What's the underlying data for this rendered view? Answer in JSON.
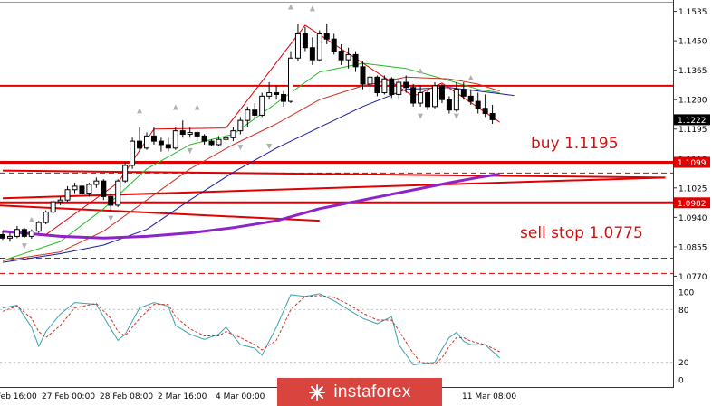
{
  "colors": {
    "bull_candle": "#ffffff",
    "bear_candle": "#000000",
    "level_line": "#e00000",
    "ma_fast": "#22bb22",
    "ma_mid": "#d03020",
    "ma_slow": "#1a1aa0",
    "ma_long": "#8e24c8",
    "stoch_main": "#3aa0b0",
    "stoch_signal": "#d03020",
    "annotation_text": "#cc1111",
    "watermark_bg": "#d9453e"
  },
  "annotations": {
    "buy": "buy 1.1195",
    "sell": "sell stop 1.0775"
  },
  "watermark": {
    "text": "instaforex",
    "icon": "instaforex-logo-icon"
  },
  "chart_data": [
    {
      "type": "candlestick",
      "symbol_timeframe_hidden": true,
      "price_axis": {
        "ylim": [
          1.0745,
          1.156
        ],
        "ticks": [
          "1.1535",
          "1.1450",
          "1.1365",
          "1.1280",
          "1.1195",
          "1.1110",
          "1.1025",
          "1.0940",
          "1.0855",
          "1.0770"
        ],
        "tick_values": [
          1.1535,
          1.145,
          1.1365,
          1.128,
          1.1195,
          1.111,
          1.1025,
          1.094,
          1.0855,
          1.077
        ]
      },
      "price_labels": [
        {
          "text": "1.1222",
          "value": 1.1222,
          "style": "current"
        },
        {
          "text": "1.1099",
          "value": 1.1099,
          "style": "level"
        },
        {
          "text": "1.0982",
          "value": 1.0982,
          "style": "level"
        }
      ],
      "x_labels": [
        "Feb 16:00",
        "27 Feb 00:00",
        "28 Feb 08:00",
        "2 Mar 16:00",
        "4 Mar 00:00",
        "11 Mar 08:00"
      ],
      "horizontal_levels": [
        1.132,
        1.1099,
        1.0982
      ],
      "dashed_levels": [
        1.1068,
        1.0822,
        1.0778
      ],
      "sloped_lines": [
        {
          "from": [
            0,
            1.0995
          ],
          "to": [
            92,
            1.1055
          ]
        },
        {
          "from": [
            0,
            1.1075
          ],
          "to": [
            92,
            1.1055
          ]
        },
        {
          "from": [
            -1,
            1.0975
          ],
          "to": [
            44,
            1.093
          ]
        }
      ],
      "zigzag": [
        [
          6,
          1.089
        ],
        [
          16,
          1.104
        ],
        [
          21,
          1.1195
        ],
        [
          31,
          1.1198
        ],
        [
          42,
          1.1495
        ],
        [
          57,
          1.129
        ],
        [
          61,
          1.1328
        ],
        [
          69,
          1.1215
        ]
      ],
      "fractals_up": [
        [
          4,
          1.0915
        ],
        [
          19,
          1.123
        ],
        [
          24,
          1.124
        ],
        [
          27,
          1.124
        ],
        [
          40,
          1.153
        ],
        [
          43,
          1.1525
        ],
        [
          58,
          1.1345
        ],
        [
          65,
          1.1325
        ],
        [
          69,
          1.1575
        ]
      ],
      "fractals_down": [
        [
          3,
          1.0875
        ],
        [
          15,
          1.0955
        ],
        [
          26,
          1.115
        ],
        [
          33,
          1.116
        ],
        [
          37,
          1.1163
        ],
        [
          58,
          1.125
        ],
        [
          63,
          1.125
        ]
      ],
      "candles": [
        [
          1.089,
          1.09,
          1.0875,
          1.088
        ],
        [
          1.088,
          1.0895,
          1.087,
          1.0885
        ],
        [
          1.0885,
          1.0915,
          1.088,
          1.0905
        ],
        [
          1.0905,
          1.091,
          1.088,
          1.0885
        ],
        [
          1.0885,
          1.0905,
          1.0878,
          1.09
        ],
        [
          1.09,
          1.093,
          1.0895,
          1.0925
        ],
        [
          1.0925,
          1.096,
          1.092,
          1.0955
        ],
        [
          1.0955,
          1.099,
          1.095,
          1.0985
        ],
        [
          1.0985,
          1.1,
          1.0975,
          1.099
        ],
        [
          1.099,
          1.103,
          1.0985,
          1.102
        ],
        [
          1.102,
          1.104,
          1.101,
          1.103
        ],
        [
          1.103,
          1.1035,
          1.1005,
          1.101
        ],
        [
          1.101,
          1.104,
          1.1,
          1.1035
        ],
        [
          1.1035,
          1.1055,
          1.1025,
          1.1045
        ],
        [
          1.1045,
          1.105,
          1.099,
          1.1
        ],
        [
          1.1,
          1.101,
          1.096,
          1.0975
        ],
        [
          1.0975,
          1.105,
          1.097,
          1.1045
        ],
        [
          1.1045,
          1.11,
          1.104,
          1.109
        ],
        [
          1.109,
          1.117,
          1.108,
          1.116
        ],
        [
          1.116,
          1.12,
          1.113,
          1.114
        ],
        [
          1.114,
          1.1185,
          1.1135,
          1.1175
        ],
        [
          1.1175,
          1.12,
          1.115,
          1.116
        ],
        [
          1.116,
          1.117,
          1.113,
          1.115
        ],
        [
          1.115,
          1.117,
          1.113,
          1.114
        ],
        [
          1.114,
          1.12,
          1.1135,
          1.119
        ],
        [
          1.119,
          1.122,
          1.117,
          1.118
        ],
        [
          1.118,
          1.12,
          1.117,
          1.1185
        ],
        [
          1.1185,
          1.119,
          1.116,
          1.1175
        ],
        [
          1.1175,
          1.118,
          1.115,
          1.116
        ],
        [
          1.116,
          1.1165,
          1.1145,
          1.115
        ],
        [
          1.115,
          1.1175,
          1.1145,
          1.1165
        ],
        [
          1.1165,
          1.118,
          1.115,
          1.117
        ],
        [
          1.117,
          1.12,
          1.116,
          1.119
        ],
        [
          1.119,
          1.123,
          1.118,
          1.122
        ],
        [
          1.122,
          1.126,
          1.12,
          1.125
        ],
        [
          1.125,
          1.127,
          1.1225,
          1.1235
        ],
        [
          1.1235,
          1.13,
          1.123,
          1.129
        ],
        [
          1.129,
          1.133,
          1.128,
          1.13
        ],
        [
          1.13,
          1.132,
          1.128,
          1.1295
        ],
        [
          1.1295,
          1.1305,
          1.126,
          1.1275
        ],
        [
          1.1275,
          1.142,
          1.127,
          1.14
        ],
        [
          1.14,
          1.15,
          1.139,
          1.147
        ],
        [
          1.147,
          1.149,
          1.142,
          1.143
        ],
        [
          1.143,
          1.146,
          1.138,
          1.1395
        ],
        [
          1.1395,
          1.148,
          1.139,
          1.147
        ],
        [
          1.147,
          1.15,
          1.144,
          1.1455
        ],
        [
          1.1455,
          1.147,
          1.141,
          1.142
        ],
        [
          1.142,
          1.144,
          1.138,
          1.1395
        ],
        [
          1.1395,
          1.143,
          1.137,
          1.141
        ],
        [
          1.141,
          1.142,
          1.136,
          1.1375
        ],
        [
          1.1375,
          1.139,
          1.131,
          1.1325
        ],
        [
          1.1325,
          1.136,
          1.13,
          1.1345
        ],
        [
          1.1345,
          1.135,
          1.129,
          1.13
        ],
        [
          1.13,
          1.135,
          1.1295,
          1.134
        ],
        [
          1.134,
          1.1345,
          1.1285,
          1.1295
        ],
        [
          1.1295,
          1.134,
          1.128,
          1.133
        ],
        [
          1.133,
          1.135,
          1.13,
          1.1315
        ],
        [
          1.1315,
          1.1325,
          1.126,
          1.127
        ],
        [
          1.127,
          1.132,
          1.126,
          1.13
        ],
        [
          1.13,
          1.131,
          1.125,
          1.126
        ],
        [
          1.126,
          1.133,
          1.1255,
          1.132
        ],
        [
          1.132,
          1.1325,
          1.127,
          1.128
        ],
        [
          1.128,
          1.129,
          1.124,
          1.125
        ],
        [
          1.125,
          1.133,
          1.1245,
          1.131
        ],
        [
          1.131,
          1.133,
          1.128,
          1.129
        ],
        [
          1.129,
          1.131,
          1.1265,
          1.1275
        ],
        [
          1.1275,
          1.13,
          1.124,
          1.1255
        ],
        [
          1.1255,
          1.1295,
          1.123,
          1.124
        ],
        [
          1.124,
          1.1265,
          1.121,
          1.1222
        ]
      ],
      "moving_averages": [
        {
          "id": "ma_fast",
          "color_key": "ma_fast",
          "width": 1,
          "points": [
            [
              0,
              1.0815
            ],
            [
              8,
              1.087
            ],
            [
              14,
              1.0965
            ],
            [
              20,
              1.108
            ],
            [
              26,
              1.115
            ],
            [
              32,
              1.118
            ],
            [
              38,
              1.127
            ],
            [
              44,
              1.136
            ],
            [
              50,
              1.1385
            ],
            [
              56,
              1.137
            ],
            [
              62,
              1.1335
            ],
            [
              66,
              1.131
            ],
            [
              69,
              1.13
            ]
          ]
        },
        {
          "id": "ma_mid",
          "color_key": "ma_mid",
          "width": 1,
          "points": [
            [
              0,
              1.0815
            ],
            [
              8,
              1.084
            ],
            [
              14,
              1.09
            ],
            [
              20,
              1.099
            ],
            [
              26,
              1.108
            ],
            [
              32,
              1.115
            ],
            [
              38,
              1.121
            ],
            [
              44,
              1.128
            ],
            [
              50,
              1.132
            ],
            [
              56,
              1.1345
            ],
            [
              62,
              1.134
            ],
            [
              66,
              1.1325
            ],
            [
              69,
              1.1305
            ]
          ]
        },
        {
          "id": "ma_slow",
          "color_key": "ma_slow",
          "width": 1,
          "points": [
            [
              0,
              1.081
            ],
            [
              8,
              1.0835
            ],
            [
              14,
              1.086
            ],
            [
              20,
              1.0905
            ],
            [
              26,
              1.099
            ],
            [
              32,
              1.107
            ],
            [
              38,
              1.114
            ],
            [
              44,
              1.12
            ],
            [
              50,
              1.126
            ],
            [
              56,
              1.131
            ],
            [
              62,
              1.1315
            ],
            [
              66,
              1.1305
            ],
            [
              71,
              1.1292
            ]
          ]
        },
        {
          "id": "ma_long",
          "color_key": "ma_long",
          "width": 3,
          "points": [
            [
              0,
              1.09
            ],
            [
              8,
              1.0885
            ],
            [
              14,
              1.088
            ],
            [
              20,
              1.0885
            ],
            [
              26,
              1.0895
            ],
            [
              32,
              1.091
            ],
            [
              38,
              1.093
            ],
            [
              44,
              1.0965
            ],
            [
              50,
              1.099
            ],
            [
              56,
              1.1015
            ],
            [
              62,
              1.104
            ],
            [
              66,
              1.1055
            ],
            [
              69,
              1.1065
            ]
          ]
        }
      ]
    },
    {
      "type": "line",
      "indicator": "stochastic",
      "ylim": [
        0,
        100
      ],
      "ticks": [
        "100",
        "80",
        "20",
        "0"
      ],
      "tick_values": [
        100,
        80,
        20,
        0
      ],
      "series": [
        {
          "id": "stoch_main",
          "color_key": "stoch_main",
          "dash": false,
          "points": [
            [
              0,
              82
            ],
            [
              2,
              85
            ],
            [
              4,
              60
            ],
            [
              5,
              38
            ],
            [
              6,
              55
            ],
            [
              8,
              75
            ],
            [
              10,
              88
            ],
            [
              13,
              86
            ],
            [
              15,
              58
            ],
            [
              16,
              45
            ],
            [
              17,
              52
            ],
            [
              19,
              82
            ],
            [
              21,
              88
            ],
            [
              23,
              84
            ],
            [
              24,
              62
            ],
            [
              26,
              52
            ],
            [
              28,
              46
            ],
            [
              30,
              52
            ],
            [
              31,
              60
            ],
            [
              33,
              40
            ],
            [
              35,
              36
            ],
            [
              36,
              28
            ],
            [
              38,
              60
            ],
            [
              40,
              97
            ],
            [
              42,
              95
            ],
            [
              44,
              98
            ],
            [
              46,
              90
            ],
            [
              48,
              80
            ],
            [
              50,
              70
            ],
            [
              52,
              64
            ],
            [
              54,
              72
            ],
            [
              55,
              40
            ],
            [
              57,
              17
            ],
            [
              58,
              18
            ],
            [
              60,
              20
            ],
            [
              61,
              35
            ],
            [
              62,
              48
            ],
            [
              63,
              54
            ],
            [
              64,
              44
            ],
            [
              65,
              40
            ],
            [
              67,
              40
            ],
            [
              69,
              25
            ]
          ]
        },
        {
          "id": "stoch_signal",
          "color_key": "stoch_signal",
          "dash": true,
          "points": [
            [
              0,
              78
            ],
            [
              2,
              84
            ],
            [
              4,
              70
            ],
            [
              5,
              55
            ],
            [
              6,
              48
            ],
            [
              8,
              62
            ],
            [
              10,
              82
            ],
            [
              13,
              87
            ],
            [
              15,
              70
            ],
            [
              16,
              55
            ],
            [
              17,
              50
            ],
            [
              19,
              70
            ],
            [
              21,
              86
            ],
            [
              23,
              86
            ],
            [
              24,
              72
            ],
            [
              26,
              58
            ],
            [
              28,
              50
            ],
            [
              30,
              50
            ],
            [
              31,
              55
            ],
            [
              33,
              48
            ],
            [
              35,
              40
            ],
            [
              36,
              34
            ],
            [
              38,
              45
            ],
            [
              40,
              80
            ],
            [
              42,
              95
            ],
            [
              44,
              96
            ],
            [
              46,
              94
            ],
            [
              48,
              86
            ],
            [
              50,
              76
            ],
            [
              52,
              68
            ],
            [
              54,
              68
            ],
            [
              55,
              56
            ],
            [
              57,
              30
            ],
            [
              58,
              20
            ],
            [
              60,
              18
            ],
            [
              61,
              25
            ],
            [
              62,
              38
            ],
            [
              63,
              48
            ],
            [
              64,
              48
            ],
            [
              65,
              44
            ],
            [
              67,
              40
            ],
            [
              69,
              32
            ]
          ]
        }
      ]
    }
  ]
}
